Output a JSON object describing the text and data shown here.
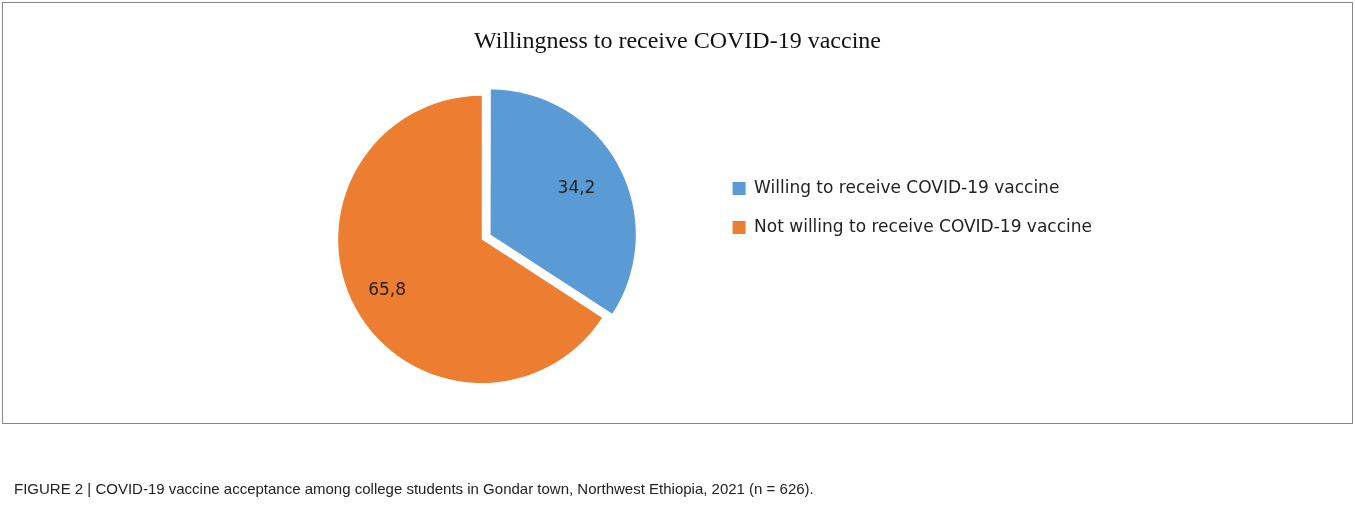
{
  "chart_data": {
    "type": "pie",
    "title": "Willingness to receive COVID-19 vaccine",
    "categories": [
      "Willing to receive COVID-19 vaccine",
      "Not willing to receive COVID-19 vaccine"
    ],
    "values": [
      34.2,
      65.8
    ],
    "colors": [
      "#5b9bd5",
      "#ed7d31"
    ],
    "value_labels": [
      "34,2",
      "65,8"
    ],
    "legend": "right",
    "annotations": [
      "FIGURE 2 | COVID-19 vaccine acceptance among college students in Gondar town, Northwest Ethiopia, 2021 (n = 626)."
    ]
  }
}
